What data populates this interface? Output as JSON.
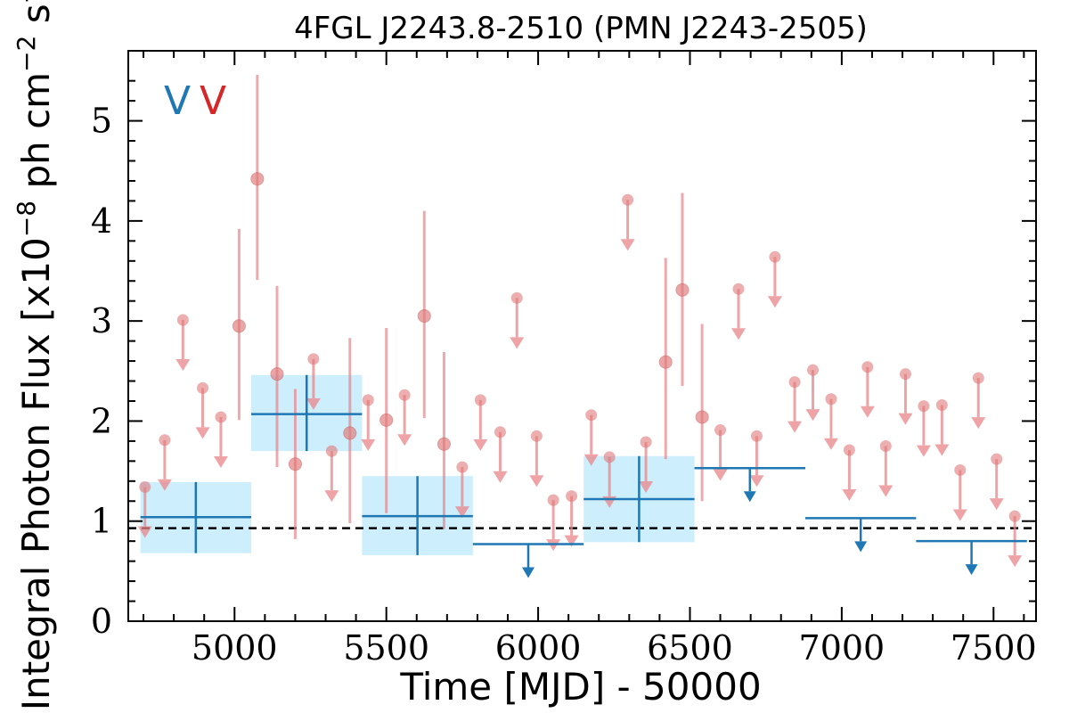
{
  "chart_data": {
    "type": "scatter",
    "title": "4FGL J2243.8-2510 (PMN J2243-2505)",
    "xlabel": "Time [MJD] - 50000",
    "ylabel": "Integral Photon Flux [x10^-8 ph cm^-2 s^-1]",
    "ylabel_parts": {
      "pre": "Integral Photon Flux [x10",
      "exp1": "−8",
      "mid": " ph cm",
      "exp2": "−2",
      "mid2": " s",
      "exp3": "−1",
      "post": "]"
    },
    "xlim": [
      4650,
      7640
    ],
    "ylim": [
      0,
      5.7
    ],
    "x_ticks": [
      5000,
      5500,
      6000,
      6500,
      7000,
      7500
    ],
    "y_ticks": [
      0,
      1,
      2,
      3,
      4,
      5
    ],
    "grid": false,
    "legend": [
      {
        "label": "V",
        "color": "#1f77b4"
      },
      {
        "label": "V",
        "color": "#d62728"
      }
    ],
    "mean_flux_line": 0.93,
    "colors": {
      "coarse": "#1f77b4",
      "coarse_band": "#cdeefc",
      "fine": "#e8868a",
      "fine_point": "#e07878"
    },
    "coarse_bins": [
      {
        "x0": 4690,
        "x1": 5055,
        "y": 1.04,
        "ylo": 0.68,
        "yhi": 1.39,
        "type": "detection"
      },
      {
        "x0": 5055,
        "x1": 5420,
        "y": 2.07,
        "ylo": 1.7,
        "yhi": 2.46,
        "type": "detection"
      },
      {
        "x0": 5420,
        "x1": 5785,
        "y": 1.05,
        "ylo": 0.66,
        "yhi": 1.45,
        "type": "detection"
      },
      {
        "x0": 5785,
        "x1": 6150,
        "y": 0.77,
        "type": "upper_limit"
      },
      {
        "x0": 6150,
        "x1": 6515,
        "y": 1.22,
        "ylo": 0.79,
        "yhi": 1.65,
        "type": "detection"
      },
      {
        "x0": 6515,
        "x1": 6880,
        "y": 1.53,
        "type": "upper_limit"
      },
      {
        "x0": 6880,
        "x1": 7245,
        "y": 1.03,
        "type": "upper_limit"
      },
      {
        "x0": 7245,
        "x1": 7610,
        "y": 0.8,
        "type": "upper_limit"
      }
    ],
    "fine_detections": [
      {
        "x": 5015,
        "y": 2.95,
        "ylo": 2.01,
        "yhi": 3.92
      },
      {
        "x": 5075,
        "y": 4.42,
        "ylo": 3.41,
        "yhi": 5.46
      },
      {
        "x": 5140,
        "y": 2.47,
        "ylo": 1.54,
        "yhi": 3.35
      },
      {
        "x": 5200,
        "y": 1.57,
        "ylo": 0.82,
        "yhi": 2.32
      },
      {
        "x": 5380,
        "y": 1.88,
        "ylo": 0.98,
        "yhi": 2.83
      },
      {
        "x": 5500,
        "y": 2.01,
        "ylo": 1.08,
        "yhi": 2.93
      },
      {
        "x": 5625,
        "y": 3.05,
        "ylo": 2.03,
        "yhi": 4.1
      },
      {
        "x": 5690,
        "y": 1.77,
        "ylo": 0.92,
        "yhi": 2.69
      },
      {
        "x": 6420,
        "y": 2.59,
        "ylo": 1.62,
        "yhi": 3.63
      },
      {
        "x": 6475,
        "y": 3.31,
        "ylo": 2.35,
        "yhi": 4.28
      },
      {
        "x": 6540,
        "y": 2.04,
        "ylo": 1.2,
        "yhi": 2.97
      }
    ],
    "fine_upper_limits": [
      {
        "x": 4705,
        "y": 1.34
      },
      {
        "x": 4770,
        "y": 1.81
      },
      {
        "x": 4830,
        "y": 3.01
      },
      {
        "x": 4895,
        "y": 2.33
      },
      {
        "x": 4955,
        "y": 2.04
      },
      {
        "x": 5260,
        "y": 2.62
      },
      {
        "x": 5320,
        "y": 1.7
      },
      {
        "x": 5440,
        "y": 2.21
      },
      {
        "x": 5560,
        "y": 2.26
      },
      {
        "x": 5750,
        "y": 1.54
      },
      {
        "x": 5810,
        "y": 2.21
      },
      {
        "x": 5875,
        "y": 1.89
      },
      {
        "x": 5930,
        "y": 3.23
      },
      {
        "x": 5995,
        "y": 1.85
      },
      {
        "x": 6050,
        "y": 1.21
      },
      {
        "x": 6110,
        "y": 1.25
      },
      {
        "x": 6175,
        "y": 2.06
      },
      {
        "x": 6235,
        "y": 1.64
      },
      {
        "x": 6295,
        "y": 4.21
      },
      {
        "x": 6355,
        "y": 1.79
      },
      {
        "x": 6600,
        "y": 1.91
      },
      {
        "x": 6660,
        "y": 3.32
      },
      {
        "x": 6720,
        "y": 1.85
      },
      {
        "x": 6780,
        "y": 3.64
      },
      {
        "x": 6845,
        "y": 2.39
      },
      {
        "x": 6905,
        "y": 2.51
      },
      {
        "x": 6965,
        "y": 2.22
      },
      {
        "x": 7025,
        "y": 1.71
      },
      {
        "x": 7085,
        "y": 2.54
      },
      {
        "x": 7145,
        "y": 1.75
      },
      {
        "x": 7210,
        "y": 2.47
      },
      {
        "x": 7270,
        "y": 2.15
      },
      {
        "x": 7330,
        "y": 2.16
      },
      {
        "x": 7390,
        "y": 1.51
      },
      {
        "x": 7450,
        "y": 2.43
      },
      {
        "x": 7510,
        "y": 1.62
      },
      {
        "x": 7570,
        "y": 1.05
      }
    ]
  }
}
